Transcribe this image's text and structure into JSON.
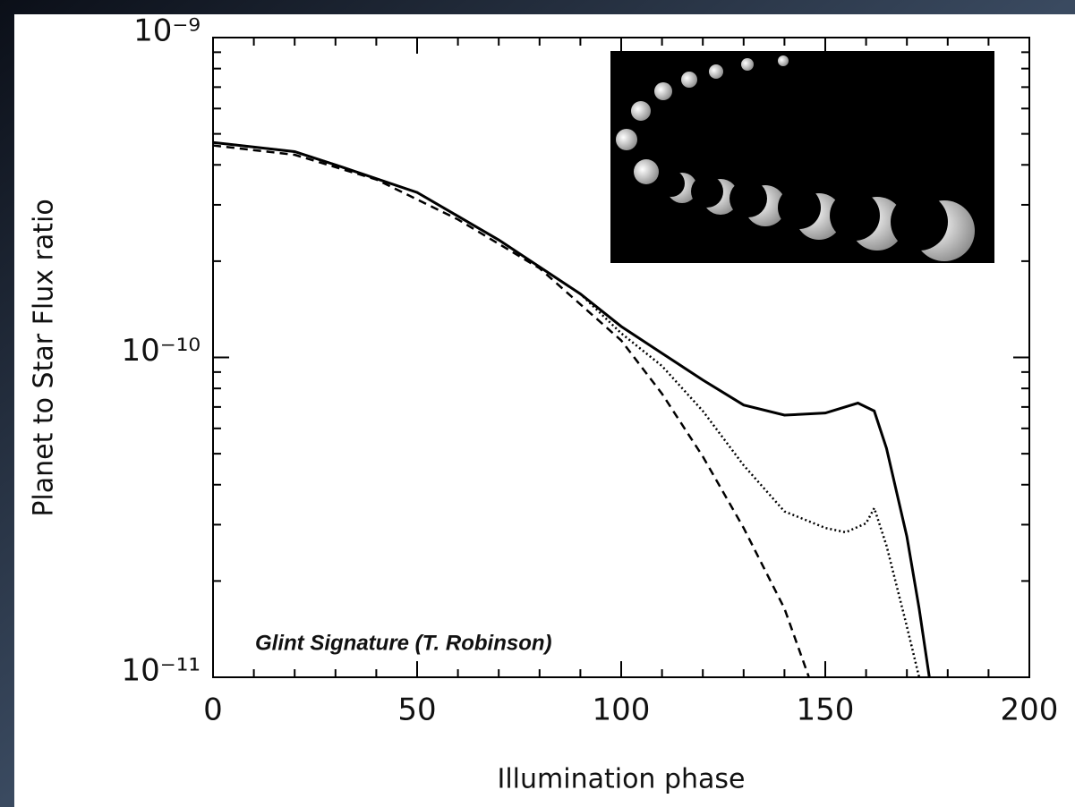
{
  "chart_data": {
    "type": "line",
    "xlabel": "Illumination phase",
    "ylabel": "Planet to Star Flux ratio",
    "annotation": "Glint Signature (T. Robinson)",
    "xlim": [
      0,
      200
    ],
    "xticks": [
      0,
      50,
      100,
      150,
      200
    ],
    "xminorticks": [
      10,
      20,
      30,
      40,
      60,
      70,
      80,
      90,
      110,
      120,
      130,
      140,
      160,
      170,
      180,
      190
    ],
    "ylim": [
      1e-11,
      1e-09
    ],
    "yscale": "log",
    "yticks": [
      {
        "value": 1e-11,
        "label": "10⁻¹¹"
      },
      {
        "value": 1e-10,
        "label": "10⁻¹⁰"
      },
      {
        "value": 1e-09,
        "label": "10⁻⁹"
      }
    ],
    "yminorticks": [
      2e-11,
      3e-11,
      4e-11,
      5e-11,
      6e-11,
      7e-11,
      8e-11,
      9e-11,
      2e-10,
      3e-10,
      4e-10,
      5e-10,
      6e-10,
      7e-10,
      8e-10,
      9e-10
    ],
    "series": [
      {
        "style": "solid",
        "color": "#000000",
        "x": [
          0,
          20,
          30,
          50,
          70,
          90,
          100,
          110,
          120,
          130,
          140,
          150,
          158,
          162,
          165,
          170,
          173,
          175.5
        ],
        "values": [
          4.7e-10,
          4.4e-10,
          4e-10,
          3.28e-10,
          2.33e-10,
          1.58e-10,
          1.25e-10,
          1.03e-10,
          8.5e-11,
          7.1e-11,
          6.6e-11,
          6.7e-11,
          7.2e-11,
          6.8e-11,
          5.2e-11,
          2.75e-11,
          1.64e-11,
          1e-11
        ]
      },
      {
        "style": "dotted",
        "color": "#000000",
        "x": [
          0,
          20,
          30,
          50,
          70,
          90,
          100,
          110,
          120,
          130,
          140,
          150,
          155,
          160,
          162,
          165,
          170,
          173
        ],
        "values": [
          4.7e-10,
          4.4e-10,
          4e-10,
          3.28e-10,
          2.33e-10,
          1.58e-10,
          1.19e-10,
          9.4e-11,
          6.8e-11,
          4.6e-11,
          3.3e-11,
          2.93e-11,
          2.84e-11,
          3.03e-11,
          3.38e-11,
          2.58e-11,
          1.44e-11,
          1e-11
        ]
      },
      {
        "style": "dashed",
        "color": "#000000",
        "x": [
          0,
          20,
          40,
          60,
          80,
          100,
          110,
          120,
          130,
          140,
          146
        ],
        "values": [
          4.6e-10,
          4.3e-10,
          3.6e-10,
          2.7e-10,
          1.9e-10,
          1.13e-10,
          7.7e-11,
          4.9e-11,
          2.93e-11,
          1.64e-11,
          1e-11
        ]
      }
    ]
  }
}
